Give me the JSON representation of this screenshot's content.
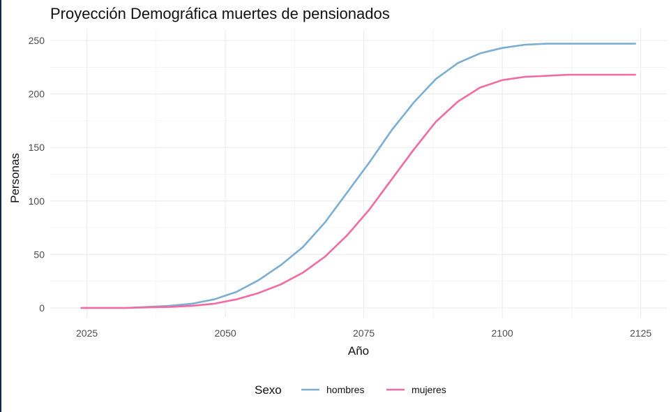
{
  "chart_data": {
    "type": "line",
    "title": "Proyección Demográfica muertes de pensionados",
    "xlabel": "Año",
    "ylabel": "Personas",
    "xlim": [
      2024,
      2124
    ],
    "ylim": [
      0,
      250
    ],
    "x_ticks": [
      "2025",
      "2050",
      "2075",
      "2100",
      "2125"
    ],
    "y_ticks": [
      "0",
      "50",
      "100",
      "150",
      "200",
      "250"
    ],
    "grid": true,
    "legend": {
      "title": "Sexo",
      "position": "bottom"
    },
    "x": [
      2024,
      2028,
      2032,
      2036,
      2040,
      2044,
      2048,
      2052,
      2056,
      2060,
      2064,
      2068,
      2072,
      2076,
      2080,
      2084,
      2088,
      2092,
      2096,
      2100,
      2104,
      2108,
      2112,
      2116,
      2120,
      2124
    ],
    "series": [
      {
        "name": "hombres",
        "color": "#7aaed2",
        "values": [
          0,
          0,
          0,
          1,
          2,
          4,
          8,
          15,
          26,
          40,
          57,
          80,
          108,
          136,
          166,
          192,
          214,
          229,
          238,
          243,
          246,
          247,
          247,
          247,
          247,
          247
        ]
      },
      {
        "name": "mujeres",
        "color": "#f06ba2",
        "values": [
          0,
          0,
          0,
          0.5,
          1,
          2,
          4,
          8,
          14,
          22,
          33,
          48,
          68,
          92,
          120,
          148,
          174,
          193,
          206,
          213,
          216,
          217,
          218,
          218,
          218,
          218
        ]
      }
    ]
  }
}
